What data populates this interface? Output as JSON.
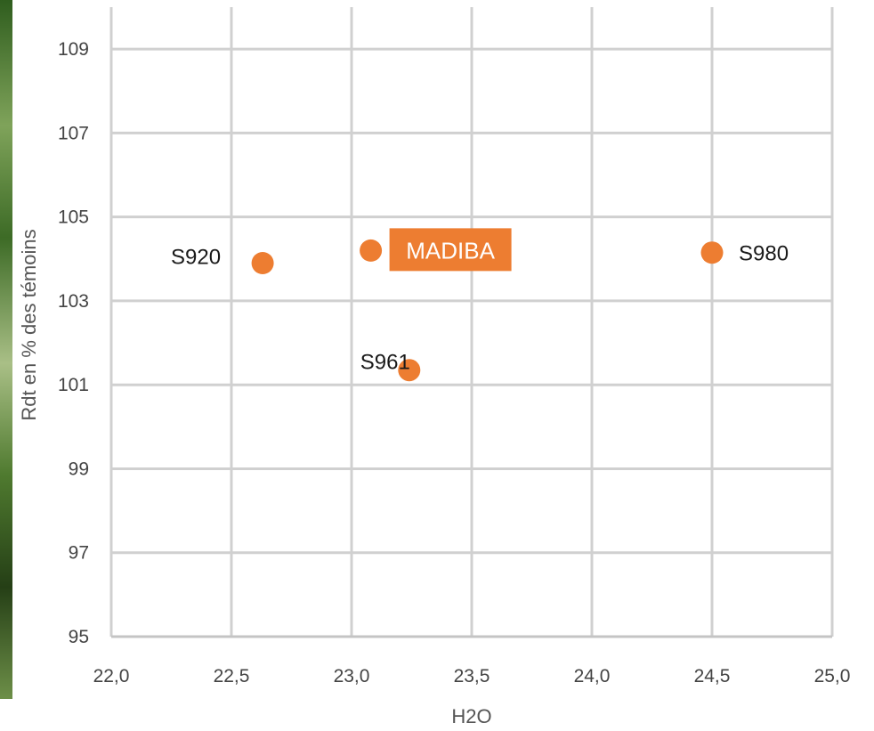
{
  "chart_data": {
    "type": "scatter",
    "xlabel": "H2O",
    "ylabel": "Rdt en % des témoins",
    "xlim": [
      22.0,
      25.0
    ],
    "ylim": [
      95,
      110
    ],
    "x_ticks": [
      "22,0",
      "22,5",
      "23,0",
      "23,5",
      "24,0",
      "24,5",
      "25,0"
    ],
    "x_tick_values": [
      22.0,
      22.5,
      23.0,
      23.5,
      24.0,
      24.5,
      25.0
    ],
    "y_ticks": [
      "95",
      "97",
      "99",
      "101",
      "103",
      "105",
      "107",
      "109"
    ],
    "y_tick_values": [
      95,
      97,
      99,
      101,
      103,
      105,
      107,
      109
    ],
    "grid": true,
    "point_color": "#ed7d31",
    "points": [
      {
        "label": "S920",
        "x": 22.63,
        "y": 103.9,
        "label_side": "left",
        "highlight": false
      },
      {
        "label": "MADIBA",
        "x": 23.08,
        "y": 104.2,
        "label_side": "right",
        "highlight": true
      },
      {
        "label": "S961",
        "x": 23.24,
        "y": 101.35,
        "label_side": "top-left",
        "highlight": false
      },
      {
        "label": "S980",
        "x": 24.5,
        "y": 104.15,
        "label_side": "right",
        "highlight": false
      }
    ]
  }
}
